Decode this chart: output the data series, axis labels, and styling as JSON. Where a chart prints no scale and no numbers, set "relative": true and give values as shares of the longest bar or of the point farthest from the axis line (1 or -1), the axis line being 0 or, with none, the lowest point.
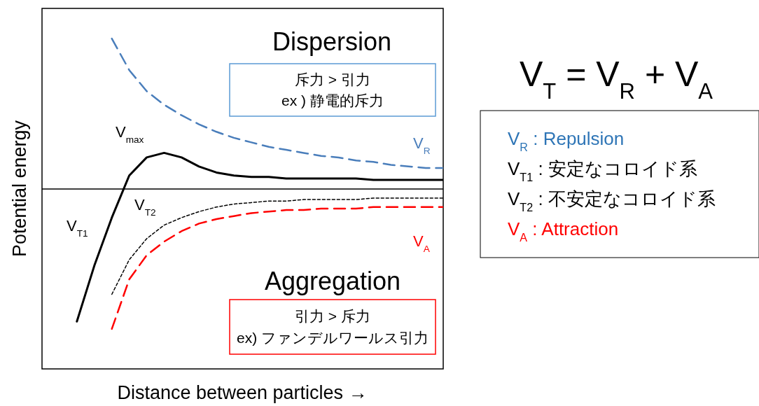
{
  "chart_data": [
    {
      "type": "line",
      "relative": true,
      "xlabel": "Distance between particles  →",
      "ylabel": "Potential energy",
      "categories": [
        null,
        null,
        null,
        null,
        null,
        null,
        null,
        null,
        null,
        null,
        null,
        null,
        null,
        null,
        null,
        null,
        null,
        null,
        null,
        null,
        null,
        null,
        null,
        null
      ],
      "series": [
        {
          "name": "V$_{R}$",
          "color": "#4a7ebb",
          "line_style": "dashed",
          "values": [
            null,
            null,
            null,
            null,
            1.0,
            0.79,
            0.65,
            0.56,
            0.49,
            0.43,
            0.38,
            0.34,
            0.31,
            0.28,
            0.26,
            0.24,
            0.22,
            0.21,
            0.19,
            0.18,
            0.16,
            0.15,
            0.14,
            0.14
          ]
        },
        {
          "name": "V$_{T1}$",
          "color": "#000000",
          "line_style": "solid",
          "values": [
            null,
            null,
            -0.88,
            -0.51,
            -0.19,
            0.09,
            0.21,
            0.24,
            0.21,
            0.15,
            0.11,
            0.09,
            0.08,
            0.08,
            0.07,
            0.07,
            0.07,
            0.07,
            0.07,
            0.06,
            0.06,
            0.06,
            0.06,
            0.06
          ]
        },
        {
          "name": "V$_{T2}$",
          "color": "#000000",
          "line_style": "dotted",
          "values": [
            null,
            null,
            null,
            null,
            -0.7,
            -0.47,
            -0.33,
            -0.24,
            -0.19,
            -0.15,
            -0.12,
            -0.1,
            -0.09,
            -0.08,
            -0.08,
            -0.07,
            -0.07,
            -0.07,
            -0.07,
            -0.06,
            -0.06,
            -0.06,
            -0.06,
            -0.06
          ]
        },
        {
          "name": "V$_{A}$",
          "color": "#ff0000",
          "line_style": "dashed",
          "values": [
            null,
            null,
            null,
            null,
            -0.93,
            -0.6,
            -0.44,
            -0.35,
            -0.28,
            -0.23,
            -0.2,
            -0.18,
            -0.16,
            -0.15,
            -0.14,
            -0.14,
            -0.13,
            -0.13,
            -0.13,
            -0.12,
            -0.12,
            -0.12,
            -0.12,
            -0.12
          ]
        }
      ],
      "annotations": [
        "Dispersion",
        "斥力 > 引力\nex ) 静電的斥力",
        "Aggregation",
        "引力 > 斥力\nex) ファンデルワールス引力",
        "V$_{max}$"
      ]
    },
    {
      "type": "other",
      "title": "V$_{T}$ = V$_{R}$ + V$_{A}$",
      "annotations": [
        "V$_{R}$ : Repulsion",
        "V$_{T1}$ : 安定なコロイド系",
        "V$_{T2}$ : 不安定なコロイド系",
        "V$_{A}$ : Attraction"
      ]
    }
  ]
}
